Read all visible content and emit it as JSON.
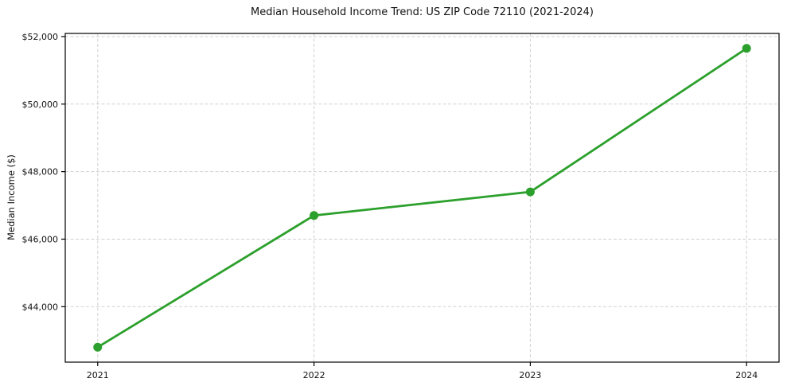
{
  "chart_data": {
    "type": "line",
    "title": "Median Household Income Trend: US ZIP Code 72110 (2021-2024)",
    "xlabel": "",
    "ylabel": "Median Income ($)",
    "categories": [
      2021,
      2022,
      2023,
      2024
    ],
    "x_tick_labels": [
      "2021",
      "2022",
      "2023",
      "2024"
    ],
    "series": [
      {
        "name": "Median Household Income",
        "values": [
          42800,
          46700,
          47400,
          51650
        ]
      }
    ],
    "y_ticks": [
      44000,
      46000,
      48000,
      50000,
      52000
    ],
    "y_tick_labels": [
      "$44,000",
      "$46,000",
      "$48,000",
      "$50,000",
      "$52,000"
    ],
    "xlim": [
      2020.85,
      2024.15
    ],
    "ylim": [
      42357,
      52093
    ],
    "grid": "on",
    "grid_line_style": "dashed",
    "legend_position": "none",
    "colors": {
      "line": "#2ca02c",
      "marker": "#2ca02c",
      "grid": "#cccccc",
      "axis": "#000000",
      "background": "#ffffff",
      "text": "#111111"
    }
  }
}
